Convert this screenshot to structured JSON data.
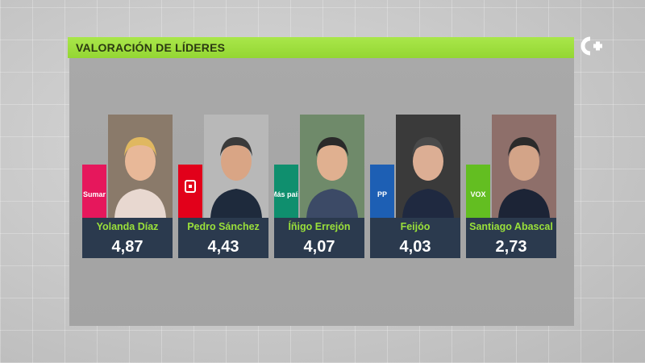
{
  "title": "VALORACIÓN DE LÍDERES",
  "chart_data": {
    "type": "bar",
    "title": "VALORACIÓN DE LÍDERES",
    "categories": [
      "Yolanda Díaz",
      "Pedro Sánchez",
      "Íñigo Errejón",
      "Feijóo",
      "Santiago Abascal"
    ],
    "values": [
      4.87,
      4.43,
      4.07,
      4.03,
      2.73
    ],
    "value_labels": [
      "4,87",
      "4,43",
      "4,07",
      "4,03",
      "2,73"
    ],
    "parties": [
      {
        "label": "Sumar",
        "color": "#e6175c"
      },
      {
        "label": "",
        "color": "#e2001a"
      },
      {
        "label": "Más país",
        "color": "#0f8f6e"
      },
      {
        "label": "PP",
        "color": "#1d5fb4"
      },
      {
        "label": "VOX",
        "color": "#63be21"
      }
    ]
  },
  "colors": {
    "accent": "#9ae03a",
    "card": "#2b3a4e",
    "title_bar": "#a9e74a"
  }
}
